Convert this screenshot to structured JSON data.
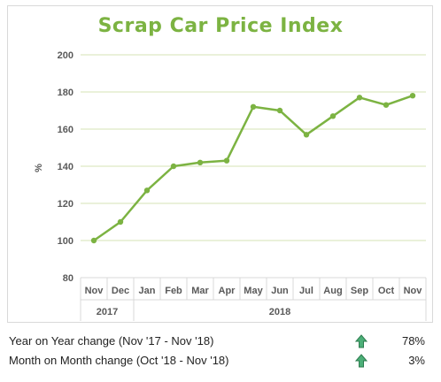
{
  "colors": {
    "line": "#7cb342",
    "title": "#7cb342",
    "grid": "#d6e3b4",
    "arrow": "#4caf78",
    "arrow_stroke": "#2e7d4f"
  },
  "chart_data": {
    "type": "line",
    "title": "Scrap Car Price Index",
    "ylabel": "%",
    "xlabel": "",
    "ylim": [
      80,
      200
    ],
    "yticks": [
      80,
      100,
      120,
      140,
      160,
      180,
      200
    ],
    "grid": true,
    "legend": "none",
    "categories": [
      "Nov",
      "Dec",
      "Jan",
      "Feb",
      "Mar",
      "Apr",
      "May",
      "Jun",
      "Jul",
      "Aug",
      "Sep",
      "Oct",
      "Nov"
    ],
    "year_groups": [
      {
        "label": "2017",
        "start": 0,
        "end": 1
      },
      {
        "label": "2018",
        "start": 2,
        "end": 12
      }
    ],
    "series": [
      {
        "values": [
          100,
          110,
          127,
          140,
          142,
          143,
          172,
          170,
          157,
          167,
          177,
          173,
          178
        ]
      }
    ]
  },
  "stats": [
    {
      "label": "Year on Year change (Nov '17 - Nov '18)",
      "value": "78%",
      "icon": "up-arrow-icon"
    },
    {
      "label": "Month on Month change (Oct '18 - Nov '18)",
      "value": "3%",
      "icon": "up-arrow-icon"
    }
  ]
}
